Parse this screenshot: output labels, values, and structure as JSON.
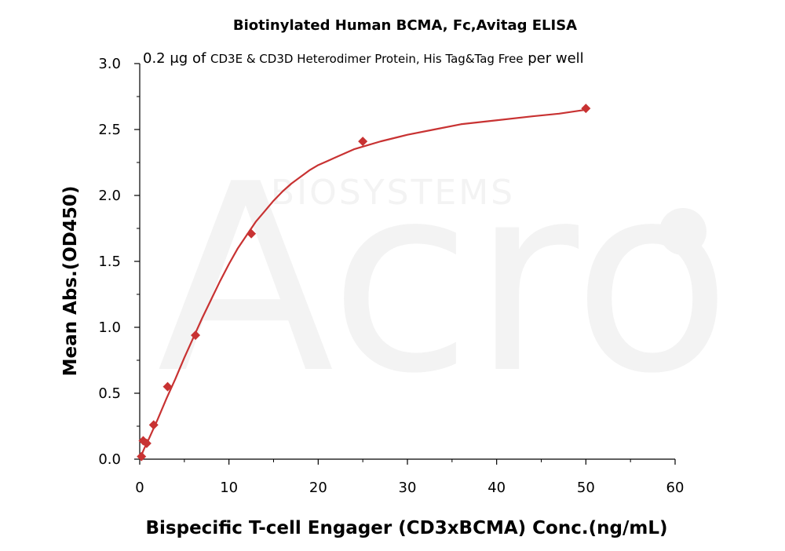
{
  "chart_data": {
    "type": "scatter",
    "title": "Biotinylated Human BCMA, Fc,Avitag ELISA",
    "subtitle": {
      "prefix": "0.2 μg of ",
      "protein": "CD3E & CD3D Heterodimer Protein, His Tag&Tag Free",
      "suffix": " per well"
    },
    "xlabel": "Bispecific T-cell Engager (CD3xBCMA) Conc.(ng/mL)",
    "ylabel": "Mean Abs.(OD450)",
    "xlim": [
      0,
      60
    ],
    "ylim": [
      0,
      3.0
    ],
    "x_ticks": [
      0,
      10,
      20,
      30,
      40,
      50,
      60
    ],
    "x_tick_labels": [
      "0",
      "10",
      "20",
      "30",
      "40",
      "50",
      "60"
    ],
    "y_ticks": [
      0,
      0.5,
      1.0,
      1.5,
      2.0,
      2.5,
      3.0
    ],
    "y_tick_labels": [
      "0.0",
      "0.5",
      "1.0",
      "1.5",
      "2.0",
      "2.5",
      "3.0"
    ],
    "grid": false,
    "series": [
      {
        "marker": "diamond",
        "color": "#c83232",
        "x": [
          0.195,
          0.391,
          0.781,
          1.5625,
          3.125,
          6.25,
          12.5,
          25,
          50
        ],
        "y": [
          0.02,
          0.14,
          0.12,
          0.26,
          0.55,
          0.94,
          1.71,
          2.41,
          2.66
        ]
      }
    ],
    "fit_curve": {
      "color": "#c83232",
      "x": [
        0,
        0.5,
        1,
        2,
        3,
        4,
        5,
        6,
        7,
        8,
        9,
        10,
        11,
        12,
        13,
        14,
        15,
        16,
        17,
        18,
        19,
        20,
        21,
        22,
        23,
        24,
        25,
        27,
        30,
        33,
        36,
        40,
        44,
        47,
        50
      ],
      "y": [
        0.0,
        0.08,
        0.15,
        0.3,
        0.46,
        0.61,
        0.77,
        0.92,
        1.07,
        1.21,
        1.35,
        1.48,
        1.6,
        1.7,
        1.8,
        1.88,
        1.96,
        2.03,
        2.09,
        2.14,
        2.19,
        2.23,
        2.26,
        2.29,
        2.32,
        2.35,
        2.37,
        2.41,
        2.46,
        2.5,
        2.54,
        2.57,
        2.6,
        2.62,
        2.65
      ]
    }
  },
  "watermark": {
    "logo": "Acro",
    "text": "BIOSYSTEMS"
  }
}
